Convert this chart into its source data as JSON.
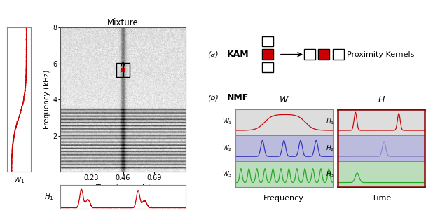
{
  "title": "Mixture",
  "xlabel": "Time (seconds)",
  "ylabel": "Frequency (kHz)",
  "xticks": [
    0.23,
    0.46,
    0.69
  ],
  "yticks": [
    2,
    4,
    6,
    8
  ],
  "W1_label": "$W_1$",
  "H1_label": "$H_1$",
  "label_a": "(a)",
  "label_b": "(b)",
  "KAM_text": "KAM",
  "NMF_text": "NMF",
  "proximity_text": "Proximity Kernels",
  "W_title": "$W$",
  "H_title": "$H$",
  "W_labels": [
    "$W_1$",
    "$W_2$",
    "$W_3$"
  ],
  "H_labels": [
    "$H_1$",
    "$H_2$",
    "$H_3$"
  ],
  "Frequency_label": "Frequency",
  "Time_label": "Time",
  "red_color": "#cc0000",
  "blue_color": "#3333bb",
  "blue_light": "#8888cc",
  "green_color": "#22aa22",
  "dark_red_border": "#880000",
  "gray_border": "#888888",
  "row_bg_red": "#dddddd",
  "row_bg_blue": "#bbbbdd",
  "row_bg_green": "#bbddbb",
  "row_sep": "#777777"
}
